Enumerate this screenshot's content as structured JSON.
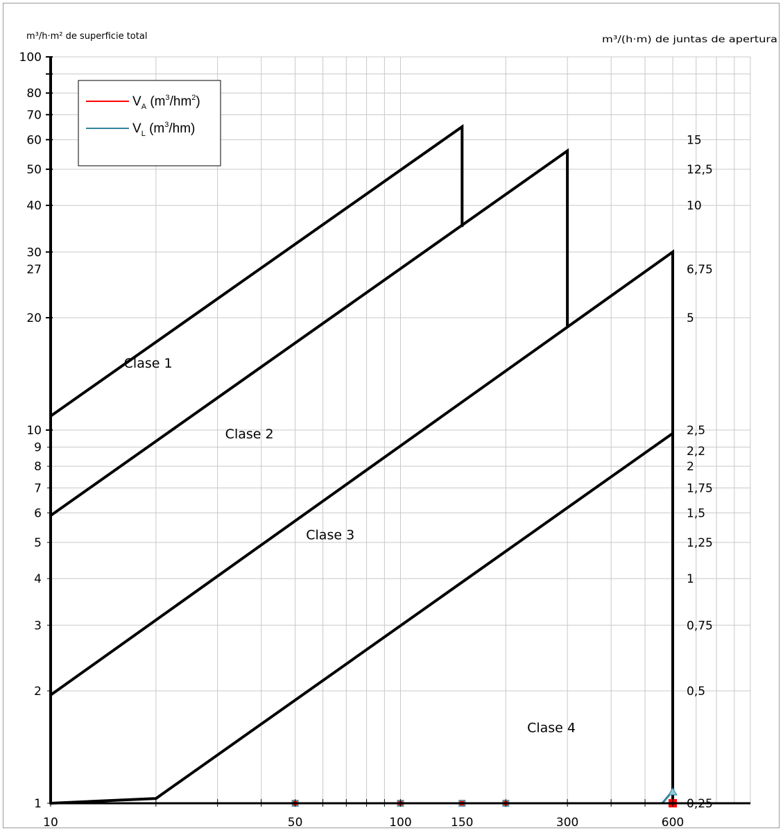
{
  "chart_data": {
    "type": "line",
    "x_scale": "log",
    "y_scale": "log",
    "xlim": [
      10,
      600
    ],
    "ylim": [
      1,
      100
    ],
    "grid": true,
    "legend_placement": "top-left",
    "y_left_header": "m³/h·m² de superficie total",
    "y_right_header": "m³/(h·m) de juntas de apertura",
    "x_tick_labels": [
      {
        "value": 10,
        "label": "10"
      },
      {
        "value": 50,
        "label": "50"
      },
      {
        "value": 100,
        "label": "100"
      },
      {
        "value": 150,
        "label": "150"
      },
      {
        "value": 300,
        "label": "300"
      },
      {
        "value": 600,
        "label": "600"
      }
    ],
    "y_left_ticks": [
      {
        "value": 1,
        "label": "1"
      },
      {
        "value": 2,
        "label": "2"
      },
      {
        "value": 3,
        "label": "3"
      },
      {
        "value": 4,
        "label": "4"
      },
      {
        "value": 5,
        "label": "5"
      },
      {
        "value": 6,
        "label": "6"
      },
      {
        "value": 7,
        "label": "7"
      },
      {
        "value": 8,
        "label": "8"
      },
      {
        "value": 9,
        "label": "9"
      },
      {
        "value": 10,
        "label": "10"
      },
      {
        "value": 20,
        "label": "20"
      },
      {
        "value": 27,
        "label": "27"
      },
      {
        "value": 30,
        "label": "30"
      },
      {
        "value": 40,
        "label": "40"
      },
      {
        "value": 50,
        "label": "50"
      },
      {
        "value": 60,
        "label": "60"
      },
      {
        "value": 70,
        "label": "70"
      },
      {
        "value": 80,
        "label": "80"
      },
      {
        "value": 100,
        "label": "100"
      }
    ],
    "y_right_ticks": [
      {
        "value": 1,
        "label": "0,25"
      },
      {
        "value": 2,
        "label": "0,5"
      },
      {
        "value": 3,
        "label": "0,75"
      },
      {
        "value": 4,
        "label": "1"
      },
      {
        "value": 5,
        "label": "1,25"
      },
      {
        "value": 6,
        "label": "1,5"
      },
      {
        "value": 7,
        "label": "1,75"
      },
      {
        "value": 8,
        "label": "2"
      },
      {
        "value": 8.8,
        "label": "2,2"
      },
      {
        "value": 10,
        "label": "2,5"
      },
      {
        "value": 20,
        "label": "5"
      },
      {
        "value": 27,
        "label": "6,75"
      },
      {
        "value": 40,
        "label": "10"
      },
      {
        "value": 50,
        "label": "12,5"
      },
      {
        "value": 60,
        "label": "15"
      }
    ],
    "boundaries": [
      {
        "points": [
          [
            10,
            10.9
          ],
          [
            150,
            65
          ],
          [
            150,
            35
          ]
        ]
      },
      {
        "points": [
          [
            10,
            5.9
          ],
          [
            300,
            56
          ],
          [
            300,
            19
          ]
        ]
      },
      {
        "points": [
          [
            10,
            1.95
          ],
          [
            600,
            30
          ],
          [
            600,
            1
          ]
        ]
      },
      {
        "points": [
          [
            10,
            1
          ],
          [
            20,
            1.03
          ],
          [
            600,
            9.8
          ]
        ]
      }
    ],
    "regions": [
      {
        "label": "Clase 1",
        "x": 19,
        "y": 14.7
      },
      {
        "label": "Clase 2",
        "x": 37,
        "y": 9.5
      },
      {
        "label": "Clase 3",
        "x": 63,
        "y": 5.1
      },
      {
        "label": "Clase 4",
        "x": 270,
        "y": 1.55
      }
    ],
    "series": [
      {
        "name": "V_A (m³/hm²)",
        "legend_main": "V",
        "legend_sub": "A",
        "legend_unit": "(m",
        "legend_sup": "3",
        "legend_unit2": "/hm",
        "legend_sup2": "2",
        "legend_tail": ")",
        "color": "#ff0000",
        "points": [
          [
            50,
            1
          ],
          [
            100,
            1
          ],
          [
            150,
            1
          ],
          [
            200,
            1
          ],
          [
            600,
            1
          ]
        ]
      },
      {
        "name": "V_L (m³/hm)",
        "legend_main": "V",
        "legend_sub": "L",
        "legend_unit": "(m",
        "legend_sup": "3",
        "legend_unit2": "/hm)",
        "legend_sup2": "",
        "legend_tail": "",
        "color": "#31849b",
        "points": [
          [
            50,
            1
          ],
          [
            100,
            1
          ],
          [
            150,
            1
          ],
          [
            200,
            1
          ],
          [
            560,
            1
          ],
          [
            600,
            1.08
          ]
        ]
      }
    ],
    "boundary_color": "#000000",
    "grid_color": "#c8c8c8"
  }
}
